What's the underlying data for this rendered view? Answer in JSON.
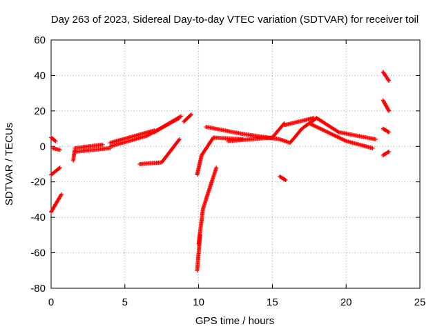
{
  "chart_data": {
    "type": "scatter",
    "title": "Day 263 of 2023, Sidereal Day-to-day VTEC variation (SDTVAR) for receiver toil",
    "xlabel": "GPS time / hours",
    "ylabel": "SDTVAR / TECUs",
    "xlim": [
      0,
      25
    ],
    "ylim": [
      -80,
      60
    ],
    "xticks": [
      0,
      5,
      10,
      15,
      20,
      25
    ],
    "yticks": [
      -80,
      -60,
      -40,
      -20,
      0,
      20,
      40,
      60
    ],
    "grid": true,
    "marker": "+",
    "color": "#ff0000",
    "segments": [
      {
        "x0": 0.0,
        "y0": -37,
        "x1": 0.7,
        "y1": -27
      },
      {
        "x0": 0.0,
        "y0": -16,
        "x1": 0.6,
        "y1": -12
      },
      {
        "x0": 0.0,
        "y0": 5,
        "x1": 0.3,
        "y1": 3
      },
      {
        "x0": 0.1,
        "y0": -1,
        "x1": 0.6,
        "y1": -2
      },
      {
        "x0": 1.5,
        "y0": -8,
        "x1": 1.6,
        "y1": -2
      },
      {
        "x0": 1.6,
        "y0": -3,
        "x1": 4.0,
        "y1": -1
      },
      {
        "x0": 1.6,
        "y0": -1,
        "x1": 3.5,
        "y1": 1
      },
      {
        "x0": 4.0,
        "y0": 0,
        "x1": 6.5,
        "y1": 6
      },
      {
        "x0": 4.0,
        "y0": 2,
        "x1": 7.0,
        "y1": 9
      },
      {
        "x0": 6.5,
        "y0": 6,
        "x1": 8.7,
        "y1": 16
      },
      {
        "x0": 7.0,
        "y0": 8,
        "x1": 8.8,
        "y1": 17
      },
      {
        "x0": 6.0,
        "y0": -10,
        "x1": 7.5,
        "y1": -9
      },
      {
        "x0": 7.5,
        "y0": -9,
        "x1": 8.7,
        "y1": 4
      },
      {
        "x0": 9.0,
        "y0": 14,
        "x1": 9.5,
        "y1": 18
      },
      {
        "x0": 9.9,
        "y0": -70,
        "x1": 10.1,
        "y1": -50
      },
      {
        "x0": 10.0,
        "y0": -55,
        "x1": 10.3,
        "y1": -35
      },
      {
        "x0": 10.3,
        "y0": -35,
        "x1": 11.2,
        "y1": -12
      },
      {
        "x0": 9.9,
        "y0": -16,
        "x1": 10.2,
        "y1": -5
      },
      {
        "x0": 10.2,
        "y0": -5,
        "x1": 11.0,
        "y1": 5
      },
      {
        "x0": 11.0,
        "y0": 5,
        "x1": 13.0,
        "y1": 4
      },
      {
        "x0": 10.5,
        "y0": 11,
        "x1": 13.0,
        "y1": 7
      },
      {
        "x0": 13.0,
        "y0": 7,
        "x1": 15.5,
        "y1": 4
      },
      {
        "x0": 12.0,
        "y0": 3,
        "x1": 15.0,
        "y1": 5
      },
      {
        "x0": 15.0,
        "y0": 5,
        "x1": 15.8,
        "y1": 13
      },
      {
        "x0": 15.8,
        "y0": 12,
        "x1": 17.8,
        "y1": 16
      },
      {
        "x0": 15.5,
        "y0": 4,
        "x1": 16.2,
        "y1": 2
      },
      {
        "x0": 16.2,
        "y0": 2,
        "x1": 17.0,
        "y1": 10
      },
      {
        "x0": 17.0,
        "y0": 10,
        "x1": 18.0,
        "y1": 16
      },
      {
        "x0": 18.0,
        "y0": 16,
        "x1": 19.5,
        "y1": 8
      },
      {
        "x0": 19.5,
        "y0": 8,
        "x1": 22.0,
        "y1": 4
      },
      {
        "x0": 17.5,
        "y0": 13,
        "x1": 20.0,
        "y1": 3
      },
      {
        "x0": 20.0,
        "y0": 3,
        "x1": 21.8,
        "y1": -1
      },
      {
        "x0": 15.5,
        "y0": -17,
        "x1": 15.9,
        "y1": -19
      },
      {
        "x0": 22.5,
        "y0": 42,
        "x1": 22.9,
        "y1": 37
      },
      {
        "x0": 22.5,
        "y0": 26,
        "x1": 22.9,
        "y1": 20
      },
      {
        "x0": 22.5,
        "y0": 10,
        "x1": 22.9,
        "y1": 8
      },
      {
        "x0": 22.5,
        "y0": -5,
        "x1": 22.9,
        "y1": -3
      }
    ]
  }
}
